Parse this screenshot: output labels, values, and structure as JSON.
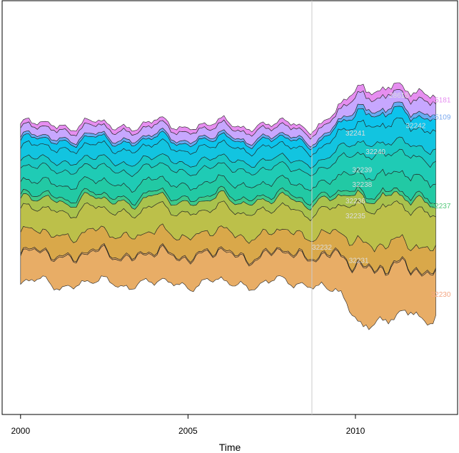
{
  "chart_data": {
    "type": "area",
    "subtype": "streamgraph",
    "xlabel": "Time",
    "ylabel": "",
    "title": "",
    "xlim": [
      1999.45,
      2013.05
    ],
    "x_ticks": [
      2000,
      2005,
      2010
    ],
    "vline_x": 2008.7,
    "grid": false,
    "legend": "none",
    "x_start": 2000,
    "x_end": 2012.4,
    "series": [
      {
        "name": "32230",
        "color": "#e8ad66",
        "label_color": "#f4a582",
        "weights": [
          20,
          20,
          20,
          20,
          20,
          20,
          20,
          20,
          19,
          20,
          20,
          20,
          20,
          19,
          20,
          20,
          20,
          20,
          20,
          18,
          20,
          20,
          20,
          20,
          20,
          25,
          32,
          38,
          40,
          36,
          34,
          32,
          32,
          32
        ]
      },
      {
        "name": "32231",
        "color": "#e8ad66",
        "label_color": "#dddddd",
        "weights": [
          1,
          1,
          1,
          1,
          1,
          1,
          1,
          1,
          1,
          1,
          1,
          1,
          1,
          1,
          1,
          1,
          1,
          1,
          1,
          1,
          1,
          1,
          1,
          1,
          1,
          1,
          1,
          1,
          1,
          1,
          1,
          1,
          1,
          1
        ]
      },
      {
        "name": "32232",
        "color": "#d9a84a",
        "label_color": "#dddddd",
        "weights": [
          14,
          14,
          14,
          14,
          14,
          14,
          14,
          14,
          14,
          14,
          14,
          14,
          14,
          14,
          14,
          14,
          14,
          14,
          14,
          14,
          14,
          14,
          14,
          14,
          14,
          15,
          16,
          16,
          16,
          16,
          16,
          16,
          16,
          16
        ]
      },
      {
        "name": "32235",
        "color": "#bcc04a",
        "label_color": "#dddddd",
        "weights": [
          16,
          16,
          16,
          17,
          17,
          17,
          16,
          16,
          16,
          16,
          17,
          17,
          17,
          16,
          16,
          16,
          16,
          17,
          17,
          17,
          16,
          16,
          16,
          16,
          16,
          18,
          23,
          25,
          26,
          26,
          25,
          25,
          25,
          24
        ]
      },
      {
        "name": "32236",
        "color": "#a9c24d",
        "label_color": "#dddddd",
        "weights": [
          7,
          7,
          7,
          7,
          7,
          7,
          7,
          7,
          7,
          7,
          7,
          7,
          7,
          7,
          7,
          7,
          7,
          7,
          7,
          7,
          7,
          7,
          7,
          7,
          7,
          7,
          7,
          7,
          7,
          7,
          7,
          7,
          7,
          7
        ]
      },
      {
        "name": "32237",
        "color": "#3cc98a",
        "label_color": "#53c87a",
        "weights": [
          3,
          3,
          3,
          3,
          3,
          3,
          3,
          3,
          3,
          3,
          3,
          3,
          3,
          3,
          3,
          3,
          3,
          3,
          3,
          3,
          3,
          3,
          3,
          3,
          3,
          3,
          3,
          3,
          3,
          3,
          3,
          3,
          3,
          3
        ]
      },
      {
        "name": "32238",
        "color": "#22c9a4",
        "label_color": "#dddddd",
        "weights": [
          9,
          9,
          9,
          9,
          9,
          9,
          9,
          9,
          9,
          9,
          9,
          9,
          9,
          9,
          9,
          9,
          9,
          9,
          9,
          9,
          9,
          9,
          9,
          9,
          9,
          10,
          12,
          13,
          13,
          13,
          13,
          13,
          13,
          13
        ]
      },
      {
        "name": "32239",
        "color": "#1fcbb5",
        "label_color": "#dddddd",
        "weights": [
          10,
          10,
          10,
          10,
          10,
          10,
          10,
          10,
          10,
          10,
          10,
          10,
          10,
          10,
          10,
          10,
          10,
          10,
          10,
          10,
          10,
          10,
          10,
          10,
          10,
          11,
          13,
          14,
          14,
          14,
          14,
          14,
          14,
          14
        ]
      },
      {
        "name": "32240",
        "color": "#18c7c4",
        "label_color": "#dddddd",
        "weights": [
          6,
          6,
          6,
          6,
          6,
          6,
          6,
          6,
          6,
          6,
          6,
          6,
          6,
          6,
          6,
          6,
          6,
          6,
          6,
          6,
          6,
          6,
          6,
          6,
          6,
          7,
          8,
          8,
          8,
          8,
          8,
          8,
          8,
          8
        ]
      },
      {
        "name": "32241",
        "color": "#12c4e0",
        "label_color": "#dddddd",
        "weights": [
          9,
          9,
          9,
          9,
          9,
          9,
          9,
          9,
          9,
          9,
          9,
          9,
          9,
          9,
          9,
          9,
          9,
          9,
          9,
          9,
          9,
          9,
          9,
          9,
          9,
          10,
          12,
          13,
          13,
          13,
          13,
          13,
          13,
          13
        ]
      },
      {
        "name": "32242",
        "color": "#0cc3ec",
        "label_color": "#dddddd",
        "weights": [
          5,
          5,
          5,
          5,
          5,
          5,
          5,
          5,
          5,
          5,
          5,
          5,
          5,
          5,
          5,
          5,
          5,
          5,
          5,
          5,
          5,
          5,
          5,
          5,
          5,
          6,
          7,
          8,
          8,
          8,
          8,
          8,
          8,
          8
        ]
      },
      {
        "name": "35109",
        "color": "#66aaf2",
        "label_color": "#7aa8ee",
        "weights": [
          2,
          2,
          2,
          2,
          2,
          2,
          2,
          2,
          2,
          2,
          2,
          2,
          2,
          2,
          2,
          2,
          2,
          2,
          2,
          2,
          2,
          2,
          2,
          2,
          2,
          2,
          3,
          3,
          3,
          3,
          3,
          3,
          3,
          3
        ]
      },
      {
        "name": "28615",
        "color": "#c7a7ff",
        "label_color": "#dddddd",
        "weights": [
          6,
          6,
          6,
          6,
          6,
          6,
          6,
          6,
          6,
          6,
          6,
          6,
          6,
          6,
          6,
          6,
          6,
          6,
          6,
          6,
          6,
          6,
          6,
          6,
          6,
          7,
          8,
          9,
          9,
          9,
          9,
          9,
          9,
          9
        ]
      },
      {
        "name": "35181",
        "color": "#e68ef0",
        "label_color": "#e68ef0",
        "weights": [
          3,
          3,
          3,
          3,
          3,
          3,
          3,
          3,
          3,
          3,
          3,
          3,
          3,
          3,
          3,
          3,
          3,
          3,
          3,
          3,
          3,
          3,
          3,
          3,
          3,
          3,
          4,
          5,
          5,
          5,
          5,
          5,
          5,
          5
        ]
      }
    ],
    "inline_labels": [
      {
        "series": "35181",
        "x": 2012.55,
        "layer_frac": 0.6
      },
      {
        "series": "28615",
        "x": 2011.3,
        "layer_frac": 0.5
      },
      {
        "series": "35109",
        "x": 2012.55,
        "layer_frac": 0.5
      },
      {
        "series": "32242",
        "x": 2011.8,
        "layer_frac": 0.3
      },
      {
        "series": "32241",
        "x": 2010.0,
        "layer_frac": 0.7
      },
      {
        "series": "32240",
        "x": 2010.6,
        "layer_frac": 0.4
      },
      {
        "series": "32239",
        "x": 2010.2,
        "layer_frac": 0.2
      },
      {
        "series": "32238",
        "x": 2010.2,
        "layer_frac": 0.4
      },
      {
        "series": "32237",
        "x": 2012.55,
        "layer_frac": 0.5
      },
      {
        "series": "32236",
        "x": 2010.0,
        "layer_frac": 0.4
      },
      {
        "series": "32235",
        "x": 2010.0,
        "layer_frac": 0.7
      },
      {
        "series": "32232",
        "x": 2009.0,
        "layer_frac": 0.2
      },
      {
        "series": "32231",
        "x": 2010.1,
        "layer_frac": 0.4
      },
      {
        "series": "32230",
        "x": 2012.55,
        "layer_frac": 0.45
      }
    ]
  }
}
